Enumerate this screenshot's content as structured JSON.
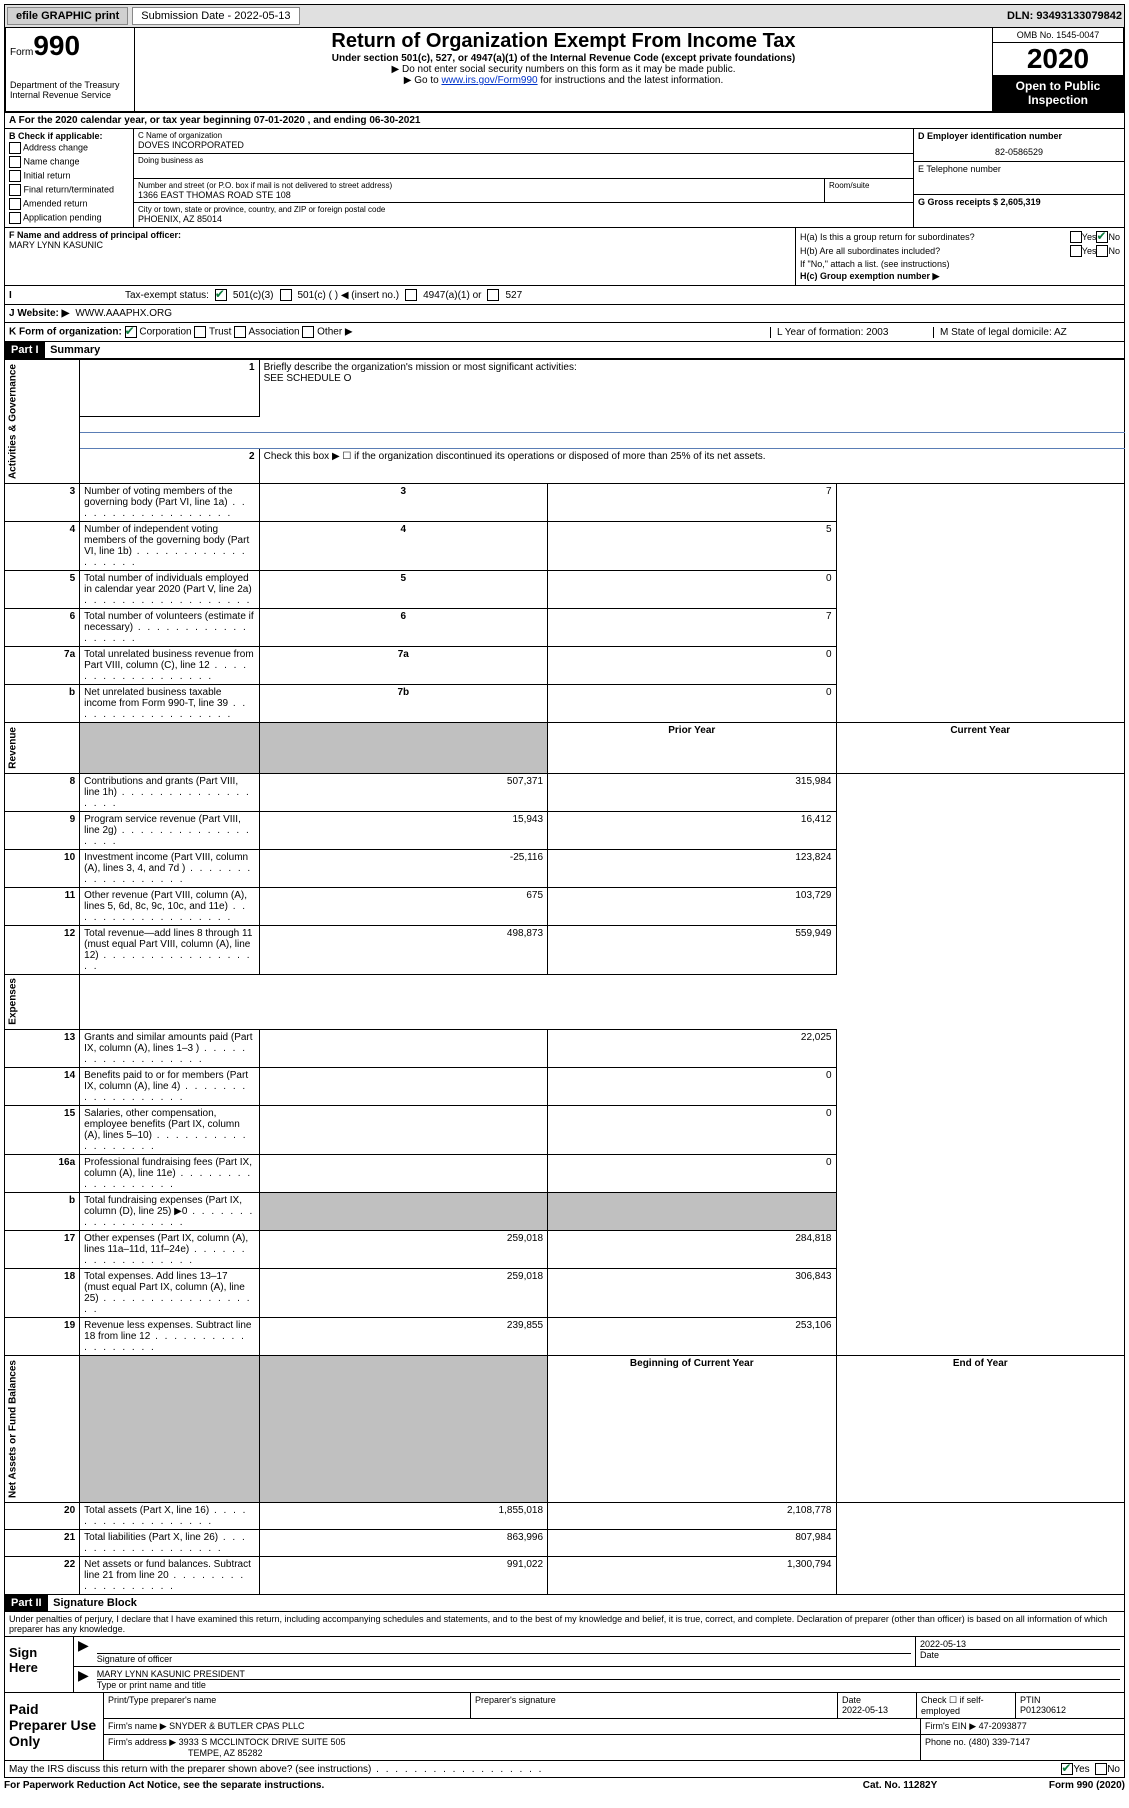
{
  "header_bar": {
    "efile": "efile GRAPHIC print",
    "sub_label": "Submission Date - 2022-05-13",
    "dln": "DLN: 93493133079842"
  },
  "form_top": {
    "form_label": "Form",
    "form_num": "990",
    "dept": "Department of the Treasury Internal Revenue Service",
    "title": "Return of Organization Exempt From Income Tax",
    "subtitle": "Under section 501(c), 527, or 4947(a)(1) of the Internal Revenue Code (except private foundations)",
    "note1": "▶ Do not enter social security numbers on this form as it may be made public.",
    "note2_pre": "▶ Go to ",
    "note2_link": "www.irs.gov/Form990",
    "note2_post": " for instructions and the latest information.",
    "omb": "OMB No. 1545-0047",
    "year": "2020",
    "open": "Open to Public Inspection"
  },
  "row_a": "A For the 2020 calendar year, or tax year beginning 07-01-2020    , and ending 06-30-2021",
  "col_b": {
    "header": "B Check if applicable:",
    "items": [
      "Address change",
      "Name change",
      "Initial return",
      "Final return/terminated",
      "Amended return",
      "Application pending"
    ]
  },
  "col_c": {
    "name_label": "C Name of organization",
    "name": "DOVES INCORPORATED",
    "dba_label": "Doing business as",
    "street_label": "Number and street (or P.O. box if mail is not delivered to street address)",
    "street": "1366 EAST THOMAS ROAD STE 108",
    "room_label": "Room/suite",
    "city_label": "City or town, state or province, country, and ZIP or foreign postal code",
    "city": "PHOENIX, AZ  85014"
  },
  "col_d": {
    "ein_label": "D Employer identification number",
    "ein": "82-0586529",
    "tel_label": "E Telephone number",
    "gross_label": "G Gross receipts $ 2,605,319"
  },
  "col_f": {
    "label": "F  Name and address of principal officer:",
    "name": "MARY LYNN KASUNIC"
  },
  "col_h": {
    "a_label": "H(a)  Is this a group return for subordinates?",
    "b_label": "H(b)  Are all subordinates included?",
    "b_note": "If \"No,\" attach a list. (see instructions)",
    "c_label": "H(c)  Group exemption number ▶"
  },
  "tax_row": {
    "label": "Tax-exempt status:",
    "o1": "501(c)(3)",
    "o2": "501(c) (  ) ◀ (insert no.)",
    "o3": "4947(a)(1) or",
    "o4": "527"
  },
  "web_row": {
    "label": "J   Website: ▶",
    "val": "WWW.AAAPHX.ORG"
  },
  "k_row": {
    "left": "K Form of organization:",
    "corp": "Corporation",
    "trust": "Trust",
    "assoc": "Association",
    "other": "Other ▶",
    "l": "L Year of formation: 2003",
    "m": "M State of legal domicile: AZ"
  },
  "part1": {
    "header": "Part I",
    "title": "Summary"
  },
  "summary": {
    "q1_label": "Briefly describe the organization's mission or most significant activities:",
    "q1_val": "SEE SCHEDULE O",
    "q2": "Check this box ▶ ☐  if the organization discontinued its operations or disposed of more than 25% of its net assets.",
    "rows_gov": [
      {
        "n": "3",
        "t": "Number of voting members of the governing body (Part VI, line 1a)",
        "k": "3",
        "v": "7"
      },
      {
        "n": "4",
        "t": "Number of independent voting members of the governing body (Part VI, line 1b)",
        "k": "4",
        "v": "5"
      },
      {
        "n": "5",
        "t": "Total number of individuals employed in calendar year 2020 (Part V, line 2a)",
        "k": "5",
        "v": "0"
      },
      {
        "n": "6",
        "t": "Total number of volunteers (estimate if necessary)",
        "k": "6",
        "v": "7"
      },
      {
        "n": "7a",
        "t": "Total unrelated business revenue from Part VIII, column (C), line 12",
        "k": "7a",
        "v": "0"
      },
      {
        "n": "b",
        "t": "Net unrelated business taxable income from Form 990-T, line 39",
        "k": "7b",
        "v": "0"
      }
    ],
    "py_header": "Prior Year",
    "cy_header": "Current Year",
    "rows_rev": [
      {
        "n": "8",
        "t": "Contributions and grants (Part VIII, line 1h)",
        "py": "507,371",
        "cy": "315,984"
      },
      {
        "n": "9",
        "t": "Program service revenue (Part VIII, line 2g)",
        "py": "15,943",
        "cy": "16,412"
      },
      {
        "n": "10",
        "t": "Investment income (Part VIII, column (A), lines 3, 4, and 7d )",
        "py": "-25,116",
        "cy": "123,824"
      },
      {
        "n": "11",
        "t": "Other revenue (Part VIII, column (A), lines 5, 6d, 8c, 9c, 10c, and 11e)",
        "py": "675",
        "cy": "103,729"
      },
      {
        "n": "12",
        "t": "Total revenue—add lines 8 through 11 (must equal Part VIII, column (A), line 12)",
        "py": "498,873",
        "cy": "559,949"
      }
    ],
    "rows_exp": [
      {
        "n": "13",
        "t": "Grants and similar amounts paid (Part IX, column (A), lines 1–3 )",
        "py": "",
        "cy": "22,025"
      },
      {
        "n": "14",
        "t": "Benefits paid to or for members (Part IX, column (A), line 4)",
        "py": "",
        "cy": "0"
      },
      {
        "n": "15",
        "t": "Salaries, other compensation, employee benefits (Part IX, column (A), lines 5–10)",
        "py": "",
        "cy": "0"
      },
      {
        "n": "16a",
        "t": "Professional fundraising fees (Part IX, column (A), line 11e)",
        "py": "",
        "cy": "0"
      },
      {
        "n": "b",
        "t": "Total fundraising expenses (Part IX, column (D), line 25) ▶0",
        "py": "GREY",
        "cy": "GREY"
      },
      {
        "n": "17",
        "t": "Other expenses (Part IX, column (A), lines 11a–11d, 11f–24e)",
        "py": "259,018",
        "cy": "284,818"
      },
      {
        "n": "18",
        "t": "Total expenses. Add lines 13–17 (must equal Part IX, column (A), line 25)",
        "py": "259,018",
        "cy": "306,843"
      },
      {
        "n": "19",
        "t": "Revenue less expenses. Subtract line 18 from line 12",
        "py": "239,855",
        "cy": "253,106"
      }
    ],
    "bcy_header": "Beginning of Current Year",
    "eoy_header": "End of Year",
    "rows_net": [
      {
        "n": "20",
        "t": "Total assets (Part X, line 16)",
        "py": "1,855,018",
        "cy": "2,108,778"
      },
      {
        "n": "21",
        "t": "Total liabilities (Part X, line 26)",
        "py": "863,996",
        "cy": "807,984"
      },
      {
        "n": "22",
        "t": "Net assets or fund balances. Subtract line 21 from line 20",
        "py": "991,022",
        "cy": "1,300,794"
      }
    ],
    "vlabels": {
      "gov": "Activities & Governance",
      "rev": "Revenue",
      "exp": "Expenses",
      "net": "Net Assets or Fund Balances"
    }
  },
  "part2": {
    "header": "Part II",
    "title": "Signature Block",
    "decl": "Under penalties of perjury, I declare that I have examined this return, including accompanying schedules and statements, and to the best of my knowledge and belief, it is true, correct, and complete. Declaration of preparer (other than officer) is based on all information of which preparer has any knowledge."
  },
  "sign": {
    "left": "Sign Here",
    "sig_label": "Signature of officer",
    "date_label": "Date",
    "date_val": "2022-05-13",
    "name": "MARY LYNN KASUNIC PRESIDENT",
    "name_label": "Type or print name and title"
  },
  "prep": {
    "left": "Paid Preparer Use Only",
    "h1": "Print/Type preparer's name",
    "h2": "Preparer's signature",
    "h3_label": "Date",
    "h3": "2022-05-13",
    "h4": "Check ☐ if self-employed",
    "h5_label": "PTIN",
    "h5": "P01230612",
    "firm_label": "Firm's name    ▶",
    "firm": "SNYDER & BUTLER CPAS PLLC",
    "ein_label": "Firm's EIN ▶",
    "ein": "47-2093877",
    "addr_label": "Firm's address ▶",
    "addr1": "3933 S MCCLINTOCK DRIVE SUITE 505",
    "addr2": "TEMPE, AZ  85282",
    "phone_label": "Phone no.",
    "phone": "(480) 339-7147"
  },
  "discuss": "May the IRS discuss this return with the preparer shown above? (see instructions)",
  "footer": {
    "left": "For Paperwork Reduction Act Notice, see the separate instructions.",
    "mid": "Cat. No. 11282Y",
    "right": "Form 990 (2020)"
  }
}
